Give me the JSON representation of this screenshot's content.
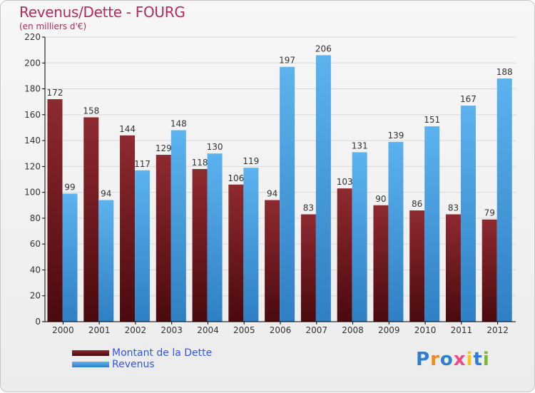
{
  "chart_data": {
    "type": "bar",
    "title": "Revenus/Dette - FOURG",
    "subtitle": "(en milliers d'€)",
    "xlabel": "",
    "ylabel": "",
    "ylim": [
      0,
      220
    ],
    "yticks": [
      0,
      20,
      40,
      60,
      80,
      100,
      120,
      140,
      160,
      180,
      200,
      220
    ],
    "grid": true,
    "legend_position": "bottom-left",
    "categories": [
      "2000",
      "2001",
      "2002",
      "2003",
      "2004",
      "2005",
      "2006",
      "2007",
      "2008",
      "2009",
      "2010",
      "2011",
      "2012"
    ],
    "series": [
      {
        "name": "Montant de la Dette",
        "color": "#7a1f24",
        "values": [
          172,
          158,
          144,
          129,
          118,
          106,
          94,
          83,
          103,
          90,
          86,
          83,
          79
        ]
      },
      {
        "name": "Revenus",
        "color": "#4aa3e6",
        "values": [
          99,
          94,
          117,
          148,
          130,
          119,
          197,
          206,
          131,
          139,
          151,
          167,
          188
        ]
      }
    ]
  },
  "logo": {
    "text": "Proxiti",
    "colors": [
      "#2f7fd0",
      "#f08a1c",
      "#2f7fd0",
      "#e84c8b",
      "#f0c51c",
      "#2f7fd0",
      "#7ab82e"
    ]
  }
}
